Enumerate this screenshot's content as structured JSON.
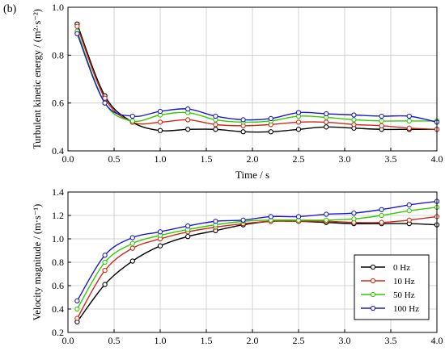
{
  "panel_label": "(b)",
  "legend": {
    "entries": [
      {
        "label": "0 Hz",
        "color": "#000000"
      },
      {
        "label": "10 Hz",
        "color": "#cc2a1a"
      },
      {
        "label": "50 Hz",
        "color": "#33cc00"
      },
      {
        "label": "100 Hz",
        "color": "#1a1acc"
      }
    ]
  },
  "chart_data": [
    {
      "type": "line",
      "title": "",
      "xlabel": "Time / s",
      "ylabel": "Turbulent kinetic energy / (m²·s⁻²)",
      "xlim": [
        0.0,
        4.0
      ],
      "ylim": [
        0.4,
        1.0
      ],
      "xticks": [
        "0.0",
        "0.5",
        "1.0",
        "1.5",
        "2.0",
        "2.5",
        "3.0",
        "3.5",
        "4.0"
      ],
      "yticks": [
        "0.4",
        "0.6",
        "0.8",
        "1.0"
      ],
      "grid": true,
      "x": [
        0.1,
        0.4,
        0.7,
        1.0,
        1.3,
        1.6,
        1.9,
        2.2,
        2.5,
        2.8,
        3.1,
        3.4,
        3.7,
        4.0
      ],
      "series": [
        {
          "name": "0 Hz",
          "values": [
            0.93,
            0.63,
            0.52,
            0.485,
            0.49,
            0.49,
            0.48,
            0.48,
            0.49,
            0.5,
            0.495,
            0.49,
            0.49,
            0.49
          ]
        },
        {
          "name": "10 Hz",
          "values": [
            0.92,
            0.62,
            0.52,
            0.52,
            0.53,
            0.51,
            0.505,
            0.51,
            0.52,
            0.52,
            0.51,
            0.505,
            0.495,
            0.49
          ]
        },
        {
          "name": "50 Hz",
          "values": [
            0.9,
            0.6,
            0.525,
            0.55,
            0.56,
            0.53,
            0.52,
            0.525,
            0.545,
            0.54,
            0.53,
            0.525,
            0.525,
            0.525
          ]
        },
        {
          "name": "100 Hz",
          "values": [
            0.89,
            0.6,
            0.545,
            0.565,
            0.575,
            0.545,
            0.53,
            0.535,
            0.56,
            0.555,
            0.55,
            0.545,
            0.545,
            0.52
          ]
        }
      ]
    },
    {
      "type": "line",
      "title": "",
      "xlabel": "",
      "ylabel": "Velocity magnitude / (m·s⁻¹)",
      "xlim": [
        0.0,
        4.0
      ],
      "ylim": [
        0.2,
        1.4
      ],
      "xticks": [
        "0.0",
        "0.5",
        "1.0",
        "1.5",
        "2.0",
        "2.5",
        "3.0",
        "3.5",
        "4.0"
      ],
      "yticks": [
        "0.2",
        "0.4",
        "0.6",
        "0.8",
        "1.0",
        "1.2",
        "1.4"
      ],
      "grid": true,
      "legend_position": "bottom-right",
      "x": [
        0.1,
        0.4,
        0.7,
        1.0,
        1.3,
        1.6,
        1.9,
        2.2,
        2.5,
        2.8,
        3.1,
        3.4,
        3.7,
        4.0
      ],
      "series": [
        {
          "name": "0 Hz",
          "values": [
            0.29,
            0.61,
            0.81,
            0.94,
            1.02,
            1.07,
            1.12,
            1.15,
            1.15,
            1.14,
            1.13,
            1.13,
            1.13,
            1.12
          ]
        },
        {
          "name": "10 Hz",
          "values": [
            0.32,
            0.73,
            0.92,
            1.0,
            1.06,
            1.1,
            1.13,
            1.15,
            1.15,
            1.15,
            1.14,
            1.14,
            1.16,
            1.19
          ]
        },
        {
          "name": "50 Hz",
          "values": [
            0.4,
            0.8,
            0.96,
            1.03,
            1.08,
            1.12,
            1.15,
            1.16,
            1.16,
            1.16,
            1.17,
            1.2,
            1.24,
            1.27
          ]
        },
        {
          "name": "100 Hz",
          "values": [
            0.47,
            0.86,
            1.01,
            1.06,
            1.11,
            1.15,
            1.16,
            1.19,
            1.19,
            1.21,
            1.22,
            1.25,
            1.29,
            1.32
          ]
        }
      ]
    }
  ]
}
